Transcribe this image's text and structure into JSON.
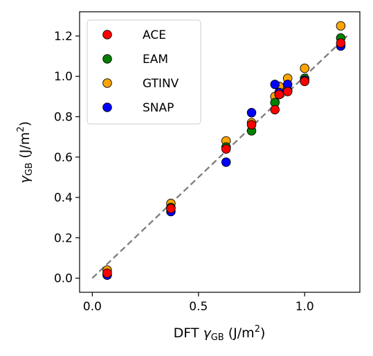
{
  "chart_data": {
    "type": "scatter",
    "title": "",
    "xlabel": "DFT γGB (J/m²)",
    "ylabel": "γGB (J/m²)",
    "xlim": [
      -0.06,
      1.26
    ],
    "ylim": [
      -0.07,
      1.32
    ],
    "x_ticks": [
      0.0,
      0.5,
      1.0
    ],
    "x_tick_labels": [
      "0.0",
      "0.5",
      "1.0"
    ],
    "y_ticks": [
      0.0,
      0.2,
      0.4,
      0.6,
      0.8,
      1.0,
      1.2
    ],
    "y_tick_labels": [
      "0.0",
      "0.2",
      "0.4",
      "0.6",
      "0.8",
      "1.0",
      "1.2"
    ],
    "grid": false,
    "legend_position": "top-left",
    "reference_line": {
      "style": "dashed",
      "color": "#808080",
      "x": [
        0.0,
        1.2
      ],
      "y": [
        0.0,
        1.2
      ]
    },
    "series": [
      {
        "name": "GTINV",
        "color": "#ffa500",
        "z": 1,
        "points": [
          [
            0.07,
            0.04
          ],
          [
            0.37,
            0.37
          ],
          [
            0.63,
            0.68
          ],
          [
            0.75,
            0.77
          ],
          [
            0.86,
            0.9
          ],
          [
            0.88,
            0.95
          ],
          [
            0.92,
            0.99
          ],
          [
            1.0,
            1.04
          ],
          [
            1.17,
            1.25
          ]
        ]
      },
      {
        "name": "EAM",
        "color": "#008000",
        "z": 2,
        "points": [
          [
            0.07,
            0.02
          ],
          [
            0.37,
            0.35
          ],
          [
            0.63,
            0.65
          ],
          [
            0.75,
            0.73
          ],
          [
            0.86,
            0.87
          ],
          [
            0.88,
            0.91
          ],
          [
            0.92,
            0.93
          ],
          [
            1.0,
            0.99
          ],
          [
            1.17,
            1.19
          ]
        ]
      },
      {
        "name": "SNAP",
        "color": "#0000ff",
        "z": 3,
        "points": [
          [
            0.07,
            0.015
          ],
          [
            0.37,
            0.33
          ],
          [
            0.63,
            0.575
          ],
          [
            0.75,
            0.82
          ],
          [
            0.86,
            0.96
          ],
          [
            0.88,
            0.92
          ],
          [
            0.92,
            0.96
          ],
          [
            1.0,
            0.98
          ],
          [
            1.17,
            1.15
          ]
        ]
      },
      {
        "name": "ACE",
        "color": "#ff0000",
        "z": 4,
        "points": [
          [
            0.07,
            0.025
          ],
          [
            0.37,
            0.345
          ],
          [
            0.63,
            0.64
          ],
          [
            0.75,
            0.76
          ],
          [
            0.86,
            0.835
          ],
          [
            0.88,
            0.91
          ],
          [
            0.92,
            0.925
          ],
          [
            1.0,
            0.975
          ],
          [
            1.17,
            1.165
          ]
        ]
      }
    ],
    "legend_order": [
      "ACE",
      "EAM",
      "GTINV",
      "SNAP"
    ]
  },
  "labels": {
    "xlabel_prefix": "DFT ",
    "gamma": "γ",
    "subscript": "GB",
    "unit_open": " (J/m",
    "unit_sup": "2",
    "unit_close": ")"
  }
}
